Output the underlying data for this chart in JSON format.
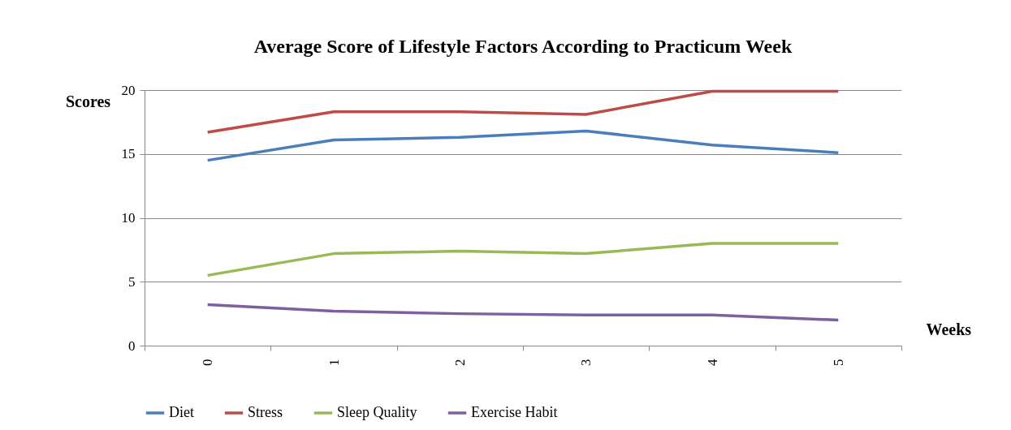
{
  "chart_data": {
    "type": "line",
    "title": "Average Score of Lifestyle Factors According  to Practicum  Week",
    "xlabel": "Weeks",
    "ylabel": "Scores",
    "categories": [
      "0",
      "1",
      "2",
      "3",
      "4",
      "5"
    ],
    "series": [
      {
        "name": "Diet",
        "color": "#4a7ebb",
        "values": [
          14.5,
          16.1,
          16.3,
          16.8,
          15.7,
          15.1
        ]
      },
      {
        "name": "Stress",
        "color": "#be4b48",
        "values": [
          16.7,
          18.3,
          18.3,
          18.1,
          19.9,
          19.9
        ]
      },
      {
        "name": "Sleep Quality",
        "color": "#98b954",
        "values": [
          5.5,
          7.2,
          7.4,
          7.2,
          8.0,
          8.0
        ]
      },
      {
        "name": "Exercise Habit",
        "color": "#7d60a0",
        "values": [
          3.2,
          2.7,
          2.5,
          2.4,
          2.4,
          2.0
        ]
      }
    ],
    "ylim": [
      0,
      20
    ],
    "yticks": [
      0,
      5,
      10,
      15,
      20
    ],
    "grid": "y",
    "legend": "bottom",
    "marker": "none",
    "line_style": "solid"
  }
}
